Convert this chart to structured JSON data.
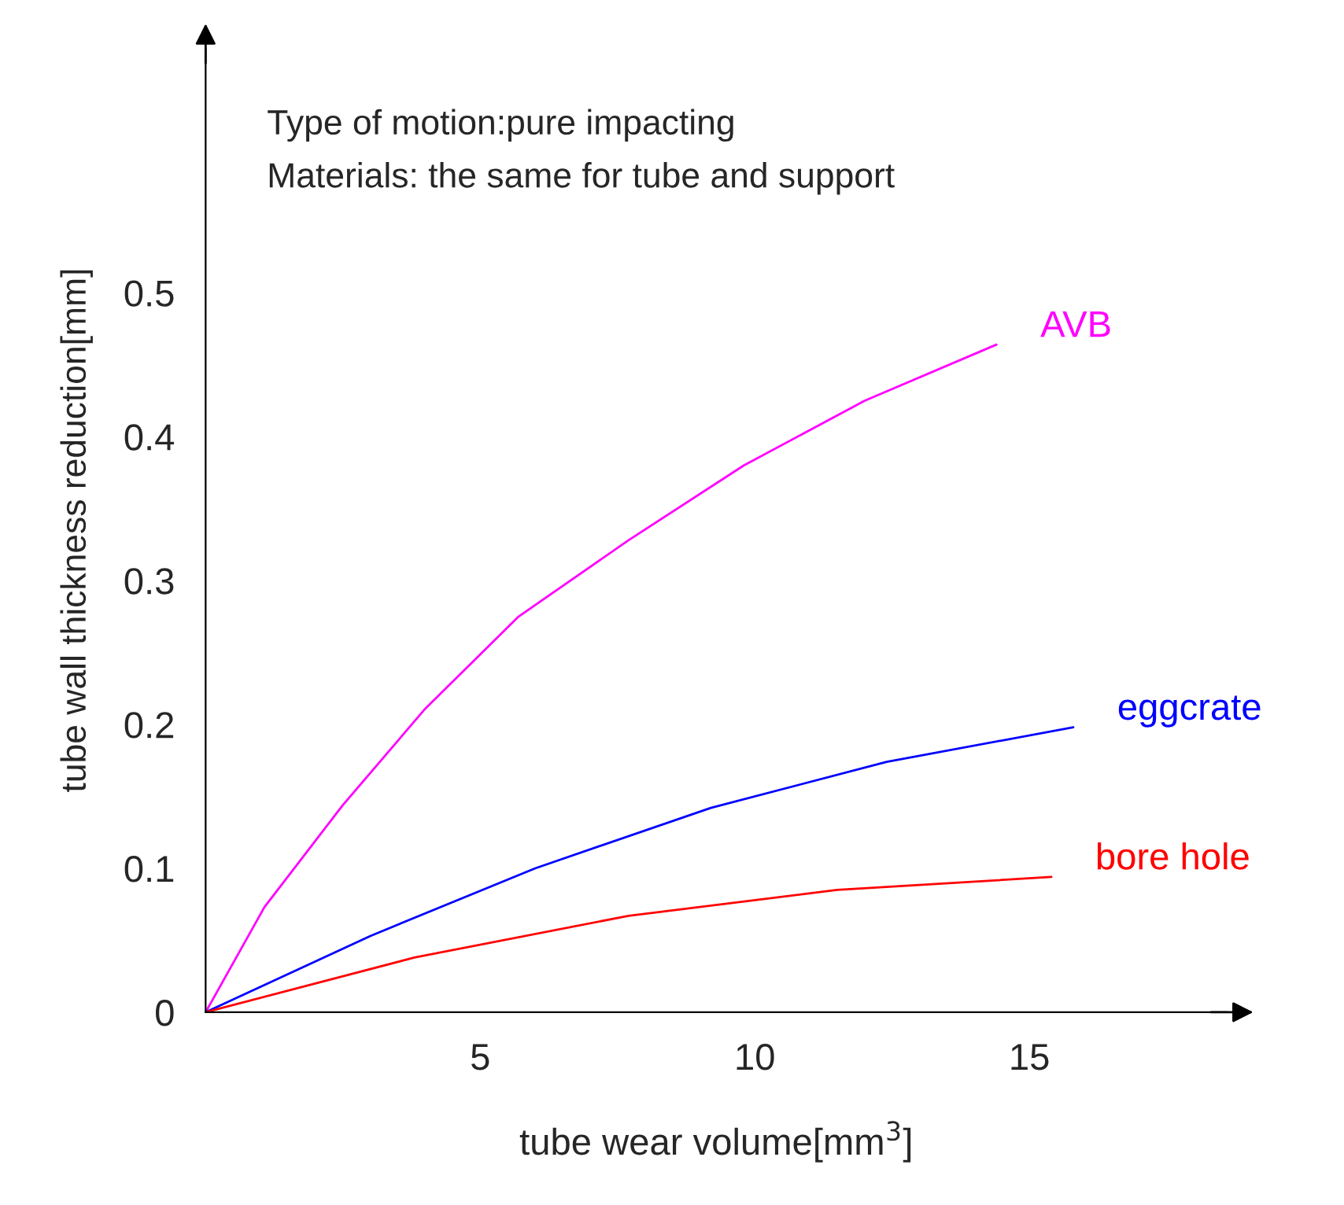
{
  "chart_data": {
    "type": "line",
    "xlabel": "tube wear volume[mm$^{3}$]",
    "ylabel": "tube wall thickness reduction[mm]",
    "annotations": [
      "Type of motion:pure impacting",
      "Materials: the same for tube and support"
    ],
    "xlim": [
      0,
      18.6
    ],
    "ylim": [
      0,
      0.67
    ],
    "xticks": [
      5,
      10,
      15
    ],
    "yticks": [
      {
        "value": 0,
        "label": "0"
      },
      0.1,
      0.2,
      0.3,
      0.4,
      0.5
    ],
    "grid": false,
    "legend": false,
    "marker": "none",
    "line_style": "solid",
    "series": [
      {
        "name": "AVB",
        "color": "#ff00ff",
        "x": [
          0,
          1.07,
          2.5,
          4,
          5.7,
          7.7,
          9.8,
          12,
          14.4
        ],
        "values": [
          0,
          0.073,
          0.144,
          0.211,
          0.275,
          0.328,
          0.38,
          0.425,
          0.464
        ]
      },
      {
        "name": "eggcrate",
        "color": "#0000ff",
        "x": [
          0,
          3,
          6,
          9.2,
          12.4,
          15.8
        ],
        "values": [
          0,
          0.053,
          0.1,
          0.142,
          0.174,
          0.198
        ]
      },
      {
        "name": "bore hole",
        "color": "#ff0000",
        "x": [
          0,
          3.8,
          7.7,
          11.5,
          15.4
        ],
        "values": [
          0,
          0.038,
          0.067,
          0.085,
          0.094
        ]
      }
    ]
  }
}
